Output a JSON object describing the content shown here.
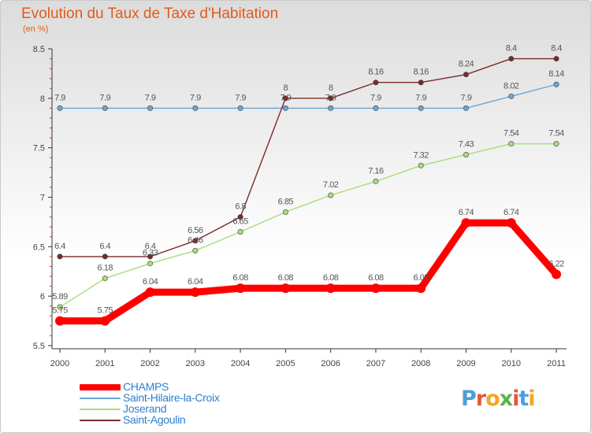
{
  "header": {
    "title": "Evolution du Taux de Taxe d'Habitation",
    "subtitle": "(en %)"
  },
  "logo": {
    "text": "Proxiti",
    "letters": [
      "P",
      "r",
      "o",
      "x",
      "i",
      "t",
      "i"
    ],
    "colors": [
      "#4a9fd9",
      "#e8563a",
      "#f5a623",
      "#5bb34d",
      "#e8563a",
      "#4a9fd9",
      "#f5a623"
    ]
  },
  "chart_data": {
    "type": "line",
    "title": "Evolution du Taux de Taxe d'Habitation",
    "ylabel": "(en %)",
    "xlabel": "",
    "x": [
      "2000",
      "2001",
      "2002",
      "2003",
      "2004",
      "2005",
      "2006",
      "2007",
      "2008",
      "2009",
      "2010",
      "2011"
    ],
    "ylim": [
      5.5,
      8.5
    ],
    "yticks": [
      "5.5",
      "6",
      "6.5",
      "7",
      "7.5",
      "8",
      "8.5"
    ],
    "grid": false,
    "legend_position": "bottom-left",
    "series": [
      {
        "name": "CHAMPS",
        "color": "#ff0000",
        "values": [
          5.75,
          5.75,
          6.04,
          6.04,
          6.08,
          6.08,
          6.08,
          6.08,
          6.08,
          6.74,
          6.74,
          6.22
        ],
        "labels": [
          "5.75",
          "5.75",
          "6.04",
          "6.04",
          "6.08",
          "6.08",
          "6.08",
          "6.08",
          "6.08",
          "6.74",
          "6.74",
          "6.22"
        ]
      },
      {
        "name": "Saint-Hilaire-la-Croix",
        "color": "#6aa5d8",
        "values": [
          7.9,
          7.9,
          7.9,
          7.9,
          7.9,
          7.9,
          7.9,
          7.9,
          7.9,
          7.9,
          8.02,
          8.14
        ],
        "labels": [
          "7.9",
          "7.9",
          "7.9",
          "7.9",
          "7.9",
          "7.9",
          "7.9",
          "7.9",
          "7.9",
          "7.9",
          "8.02",
          "8.14"
        ]
      },
      {
        "name": "Joserand",
        "color": "#a8dc7a",
        "values": [
          5.89,
          6.18,
          6.33,
          6.46,
          6.65,
          6.85,
          7.02,
          7.16,
          7.32,
          7.43,
          7.54,
          7.54
        ],
        "labels": [
          "5.89",
          "6.18",
          "6.33",
          "6.46",
          "6.65",
          "6.85",
          "7.02",
          "7.16",
          "7.32",
          "7.43",
          "7.54",
          "7.54"
        ]
      },
      {
        "name": "Saint-Agoulin",
        "color": "#7a2a2a",
        "values": [
          6.4,
          6.4,
          6.4,
          6.56,
          6.8,
          8.0,
          8.0,
          8.16,
          8.16,
          8.24,
          8.4,
          8.4
        ],
        "labels": [
          "6.4",
          "6.4",
          "6.4",
          "6.56",
          "6.8",
          "8",
          "8",
          "8.16",
          "8.16",
          "8.24",
          "8.4",
          "8.4"
        ]
      }
    ]
  }
}
